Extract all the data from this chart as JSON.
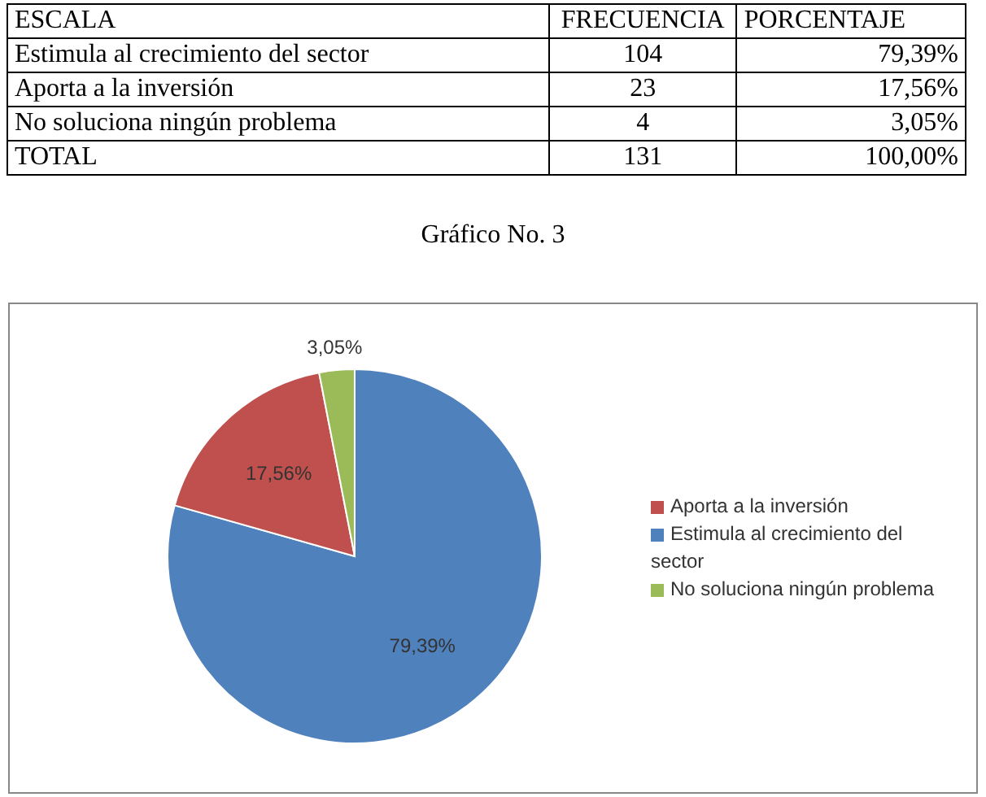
{
  "chart_data": {
    "type": "pie",
    "title": "Gráfico No. 3",
    "categories": [
      "Estimula al crecimiento del sector",
      "Aporta a la inversión",
      "No soluciona ningún problema"
    ],
    "values": [
      79.39,
      17.56,
      3.05
    ],
    "colors": [
      "#4f81bd",
      "#c0504d",
      "#9bbb59"
    ],
    "value_labels": [
      "79,39%",
      "17,56%",
      "3,05%"
    ],
    "data_labels": true,
    "legend": "right",
    "annotations": [
      "ESCALA",
      "FRECUENCIA",
      "PORCENTAJE",
      "104",
      "23",
      "4",
      "TOTAL",
      "131",
      "100,00%"
    ]
  }
}
